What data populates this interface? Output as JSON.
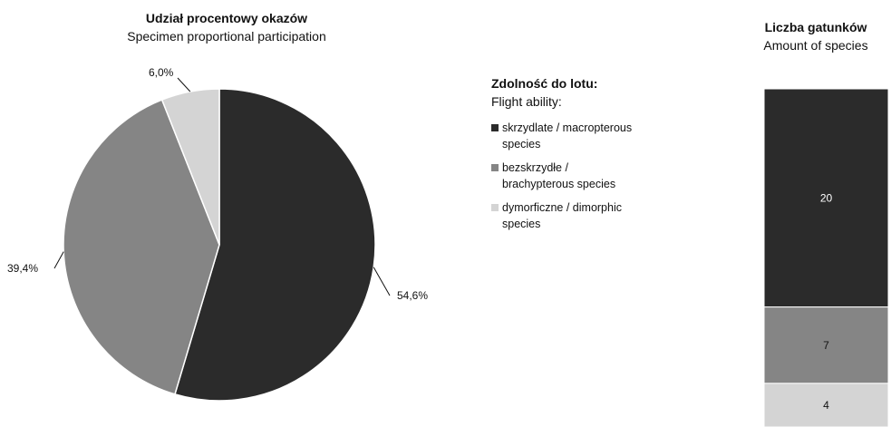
{
  "colors": {
    "macropterous": "#2b2b2b",
    "brachypterous": "#858585",
    "dimorphic": "#d4d4d4"
  },
  "chart_data": [
    {
      "type": "pie",
      "title": "Udział procentowy okazów",
      "subtitle": "Specimen proportional participation",
      "slices": [
        {
          "name": "skrzydlate / macropterous species",
          "value": 54.6,
          "label": "54,6%"
        },
        {
          "name": "bezskrzydłe / brachypterous species",
          "value": 39.4,
          "label": "39,4%"
        },
        {
          "name": "dymorficzne / dimorphic species",
          "value": 6.0,
          "label": "6,0%"
        }
      ]
    },
    {
      "type": "bar",
      "stacked": true,
      "title": "Liczba gatunków",
      "subtitle": "Amount of species",
      "segments": [
        {
          "name": "skrzydlate / macropterous species",
          "value": 20,
          "label": "20"
        },
        {
          "name": "bezskrzydłe / brachypterous species",
          "value": 7,
          "label": "7"
        },
        {
          "name": "dymorficzne / dimorphic species",
          "value": 4,
          "label": "4"
        }
      ]
    }
  ],
  "legend": {
    "title": "Zdolność do lotu:",
    "subtitle": "Flight ability:",
    "items": [
      {
        "line1": "skrzydlate / macropterous",
        "line2": "species"
      },
      {
        "line1": "bezskrzydłe /",
        "line2": "brachypterous species"
      },
      {
        "line1": "dymorficzne / dimorphic",
        "line2": "species"
      }
    ]
  }
}
